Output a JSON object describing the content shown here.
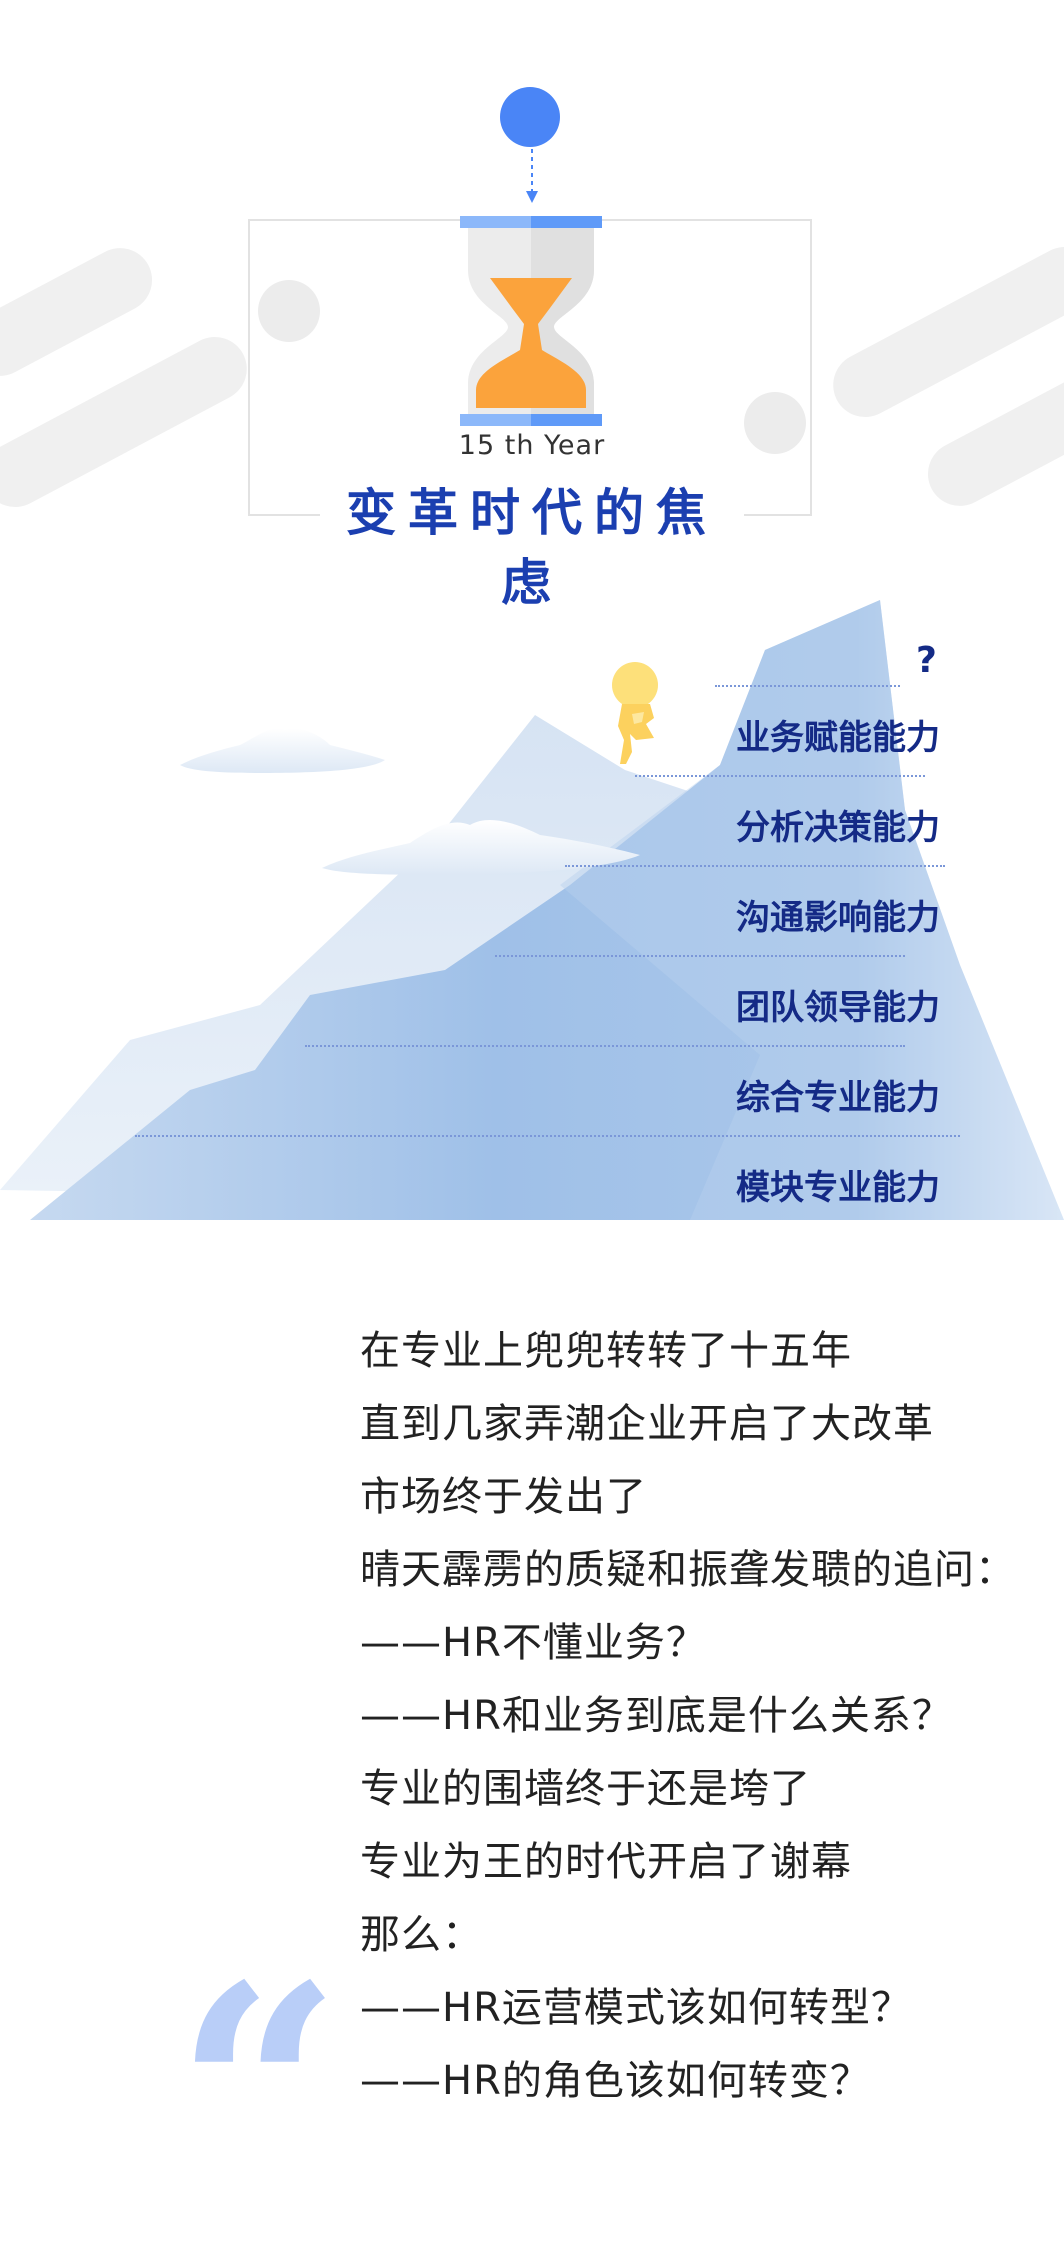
{
  "header": {
    "year_label": "15 th  Year",
    "title": "变革时代的焦虑"
  },
  "mountain": {
    "question_mark": "?",
    "skills": [
      "业务赋能能力",
      "分析决策能力",
      "沟通影响能力",
      "团队领导能力",
      "综合专业能力",
      "模块专业能力"
    ]
  },
  "body": {
    "lines": [
      "在专业上兜兜转转了十五年",
      "直到几家弄潮企业开启了大改革",
      "市场终于发出了",
      "晴天霹雳的质疑和振聋发聩的追问：",
      "——HR不懂业务？",
      "——HR和业务到底是什么关系？",
      "专业的围墙终于还是垮了",
      "专业为王的时代开启了谢幕",
      "那么：",
      "——HR运营模式该如何转型？",
      "——HR的角色该如何转变？"
    ],
    "quote_mark": "“"
  },
  "colors": {
    "accent_blue": "#4a85f6",
    "title_blue": "#1b3fb0",
    "skill_navy": "#142a86",
    "hourglass_orange": "#fba33c",
    "mountain_blue": "#9fc0e8",
    "quote_blue": "#b9cef8"
  },
  "icons": [
    "hourglass-icon",
    "thinker-figure-icon",
    "cloud-icon",
    "quote-mark-icon"
  ]
}
